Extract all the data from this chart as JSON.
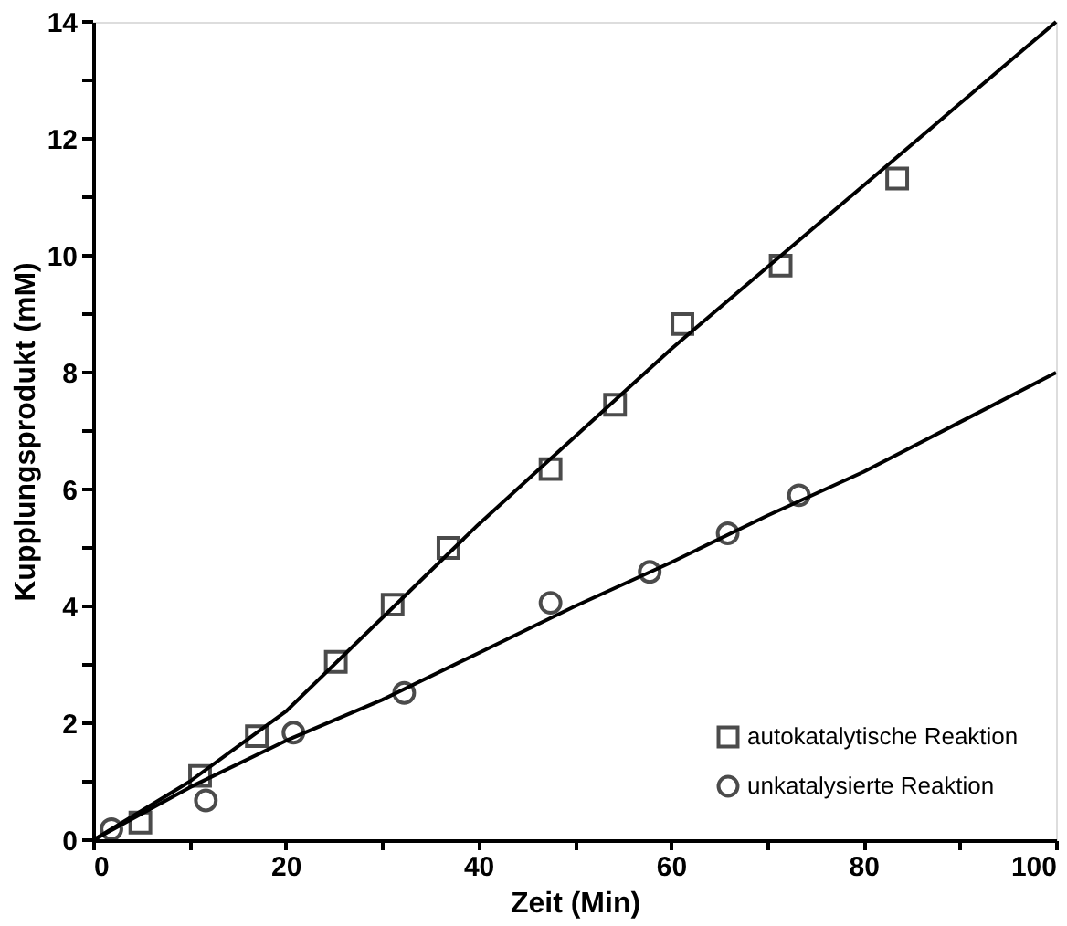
{
  "chart_data": {
    "type": "scatter",
    "xlabel": "Zeit (Min)",
    "ylabel": "Kupplungsprodukt (mM)",
    "xlim": [
      0,
      100
    ],
    "ylim": [
      0,
      14
    ],
    "xticks": [
      0,
      {
        "value": 10,
        "label": null
      },
      20,
      {
        "value": 30,
        "label": null
      },
      40,
      {
        "value": 50,
        "label": null
      },
      60,
      {
        "value": 70,
        "label": null
      },
      80,
      {
        "value": 90,
        "label": null
      },
      100
    ],
    "yticks": [
      0,
      {
        "value": 1,
        "label": null
      },
      2,
      {
        "value": 3,
        "label": null
      },
      4,
      {
        "value": 5,
        "label": null
      },
      6,
      {
        "value": 7,
        "label": null
      },
      8,
      {
        "value": 9,
        "label": null
      },
      10,
      {
        "value": 11,
        "label": null
      },
      12,
      {
        "value": 13,
        "label": null
      },
      14
    ],
    "grid": false,
    "legend": "bottom right",
    "series": [
      {
        "name": "autokatalytische Reaktion",
        "type": "scatter",
        "marker": "square",
        "color": "#000000",
        "x": [
          4.9,
          11.1,
          17.0,
          25.2,
          31.1,
          36.9,
          47.5,
          54.2,
          61.2,
          71.4,
          83.5
        ],
        "values": [
          0.3,
          1.1,
          1.78,
          3.05,
          4.03,
          5.0,
          6.35,
          7.45,
          8.83,
          9.83,
          11.32
        ]
      },
      {
        "name": "unkatalysierte Reaktion",
        "type": "scatter",
        "marker": "circle",
        "color": "#000000",
        "x": [
          1.9,
          11.7,
          20.8,
          32.3,
          47.5,
          57.8,
          65.9,
          73.3
        ],
        "values": [
          0.19,
          0.68,
          1.84,
          2.52,
          4.06,
          4.59,
          5.25,
          5.9
        ]
      },
      {
        "type": "line",
        "line_style": "solid",
        "marker": "none",
        "color": "#000000",
        "x": [
          0,
          10,
          20,
          30,
          40,
          50,
          60,
          70,
          80,
          90,
          100
        ],
        "values": [
          0,
          1.0,
          2.2,
          3.8,
          5.4,
          6.9,
          8.4,
          9.8,
          11.2,
          12.6,
          14
        ]
      },
      {
        "type": "line",
        "line_style": "solid",
        "marker": "none",
        "color": "#000000",
        "x": [
          0,
          10,
          20,
          30,
          40,
          50,
          60,
          70,
          80,
          90,
          100
        ],
        "values": [
          0,
          0.9,
          1.7,
          2.4,
          3.2,
          4.0,
          4.75,
          5.55,
          6.3,
          7.15,
          8
        ]
      }
    ]
  }
}
